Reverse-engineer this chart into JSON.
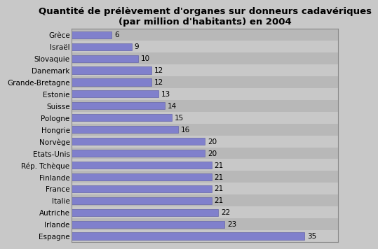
{
  "title": "Quantité de prélèvement d'organes sur donneurs cadavériques\n(par million d'habitants) en 2004",
  "categories": [
    "Espagne",
    "Irlande",
    "Autriche",
    "Italie",
    "France",
    "Finlande",
    "Rép. Tchèque",
    "Etats-Unis",
    "Norvège",
    "Hongrie",
    "Pologne",
    "Suisse",
    "Estonie",
    "Grande-Bretagne",
    "Danemark",
    "Slovaquie",
    "Israël",
    "Grèce"
  ],
  "values": [
    35,
    23,
    22,
    21,
    21,
    21,
    21,
    20,
    20,
    16,
    15,
    14,
    13,
    12,
    12,
    10,
    9,
    6
  ],
  "bar_color": "#8080cc",
  "bar_edge_color": "#6666aa",
  "background_color": "#c8c8c8",
  "row_colors": [
    "#c8c8c8",
    "#b8b8b8"
  ],
  "title_fontsize": 9.5,
  "label_fontsize": 7.5,
  "value_fontsize": 7.5,
  "xlim": [
    0,
    40
  ]
}
